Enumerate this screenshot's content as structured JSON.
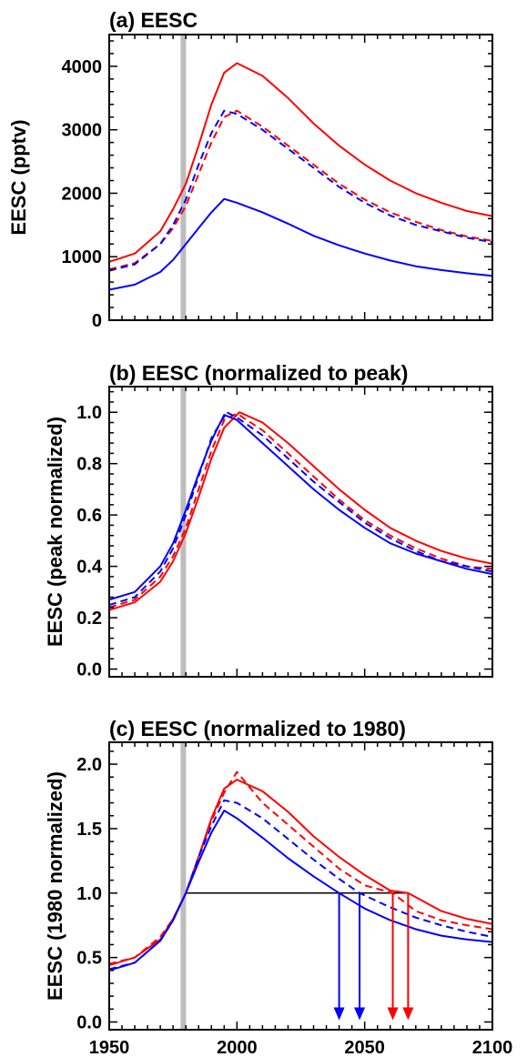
{
  "chart_data": [
    {
      "type": "line",
      "title": "(a) EESC",
      "ylabel": "EESC (pptv)",
      "xlim": [
        1950,
        2100
      ],
      "ylim": [
        0,
        4500
      ],
      "yticks": [
        "0",
        "1000",
        "2000",
        "3000",
        "4000"
      ],
      "ytick_values": [
        0,
        1000,
        2000,
        3000,
        4000
      ],
      "xticks": [
        1950,
        2000,
        2050,
        2100
      ],
      "show_x_tick_labels": false,
      "vertical_band_x": 1979,
      "series": [
        {
          "color": "#ff0000",
          "dash": false,
          "x": [
            1950,
            1960,
            1970,
            1975,
            1980,
            1985,
            1990,
            1995,
            2000,
            2010,
            2020,
            2030,
            2040,
            2050,
            2060,
            2070,
            2080,
            2090,
            2100
          ],
          "values": [
            920,
            1050,
            1400,
            1750,
            2150,
            2750,
            3400,
            3900,
            4050,
            3850,
            3500,
            3100,
            2750,
            2450,
            2200,
            2000,
            1850,
            1720,
            1640
          ]
        },
        {
          "color": "#ff0000",
          "dash": true,
          "x": [
            1950,
            1960,
            1970,
            1975,
            1980,
            1985,
            1990,
            1995,
            2000,
            2010,
            2020,
            2030,
            2040,
            2050,
            2060,
            2070,
            2080,
            2090,
            2100
          ],
          "values": [
            800,
            900,
            1200,
            1450,
            1800,
            2300,
            2800,
            3200,
            3300,
            3050,
            2750,
            2450,
            2150,
            1900,
            1700,
            1550,
            1420,
            1320,
            1250
          ]
        },
        {
          "color": "#0000ff",
          "dash": true,
          "x": [
            1950,
            1960,
            1970,
            1975,
            1980,
            1985,
            1990,
            1995,
            2000,
            2010,
            2020,
            2030,
            2040,
            2050,
            2060,
            2070,
            2080,
            2090,
            2100
          ],
          "values": [
            780,
            880,
            1200,
            1500,
            1900,
            2450,
            2950,
            3300,
            3250,
            3000,
            2700,
            2400,
            2100,
            1850,
            1650,
            1500,
            1400,
            1300,
            1230
          ]
        },
        {
          "color": "#0000ff",
          "dash": false,
          "x": [
            1950,
            1960,
            1970,
            1975,
            1980,
            1985,
            1990,
            1995,
            2000,
            2010,
            2020,
            2030,
            2040,
            2050,
            2060,
            2070,
            2080,
            2090,
            2100
          ],
          "values": [
            480,
            560,
            760,
            950,
            1200,
            1450,
            1700,
            1910,
            1850,
            1700,
            1520,
            1330,
            1180,
            1050,
            940,
            850,
            790,
            740,
            700
          ]
        }
      ]
    },
    {
      "type": "line",
      "title": "(b) EESC (normalized to peak)",
      "ylabel": "EESC (peak normalized)",
      "xlim": [
        1950,
        2100
      ],
      "ylim": [
        -0.03,
        1.1
      ],
      "yticks": [
        "0.0",
        "0.2",
        "0.4",
        "0.6",
        "0.8",
        "1.0"
      ],
      "ytick_values": [
        0,
        0.2,
        0.4,
        0.6,
        0.8,
        1.0
      ],
      "xticks": [
        1950,
        2000,
        2050,
        2100
      ],
      "show_x_tick_labels": false,
      "vertical_band_x": 1979,
      "series": [
        {
          "color": "#ff0000",
          "dash": false,
          "x": [
            1950,
            1960,
            1970,
            1975,
            1980,
            1985,
            1990,
            1995,
            2001,
            2010,
            2020,
            2030,
            2040,
            2050,
            2060,
            2070,
            2080,
            2090,
            2100
          ],
          "values": [
            0.23,
            0.26,
            0.34,
            0.42,
            0.53,
            0.67,
            0.82,
            0.94,
            1.0,
            0.96,
            0.88,
            0.79,
            0.7,
            0.62,
            0.55,
            0.5,
            0.46,
            0.43,
            0.41
          ]
        },
        {
          "color": "#ff0000",
          "dash": true,
          "x": [
            1950,
            1960,
            1970,
            1975,
            1980,
            1985,
            1990,
            1995,
            2000,
            2010,
            2020,
            2030,
            2040,
            2050,
            2060,
            2070,
            2080,
            2090,
            2100
          ],
          "values": [
            0.24,
            0.27,
            0.36,
            0.44,
            0.55,
            0.7,
            0.85,
            0.97,
            0.995,
            0.93,
            0.84,
            0.75,
            0.66,
            0.58,
            0.52,
            0.47,
            0.43,
            0.4,
            0.39
          ]
        },
        {
          "color": "#0000ff",
          "dash": true,
          "x": [
            1950,
            1960,
            1970,
            1975,
            1980,
            1985,
            1990,
            1996,
            2000,
            2010,
            2020,
            2030,
            2040,
            2050,
            2060,
            2070,
            2080,
            2090,
            2100
          ],
          "values": [
            0.25,
            0.28,
            0.38,
            0.47,
            0.6,
            0.75,
            0.9,
            1.0,
            0.98,
            0.91,
            0.82,
            0.73,
            0.65,
            0.57,
            0.51,
            0.46,
            0.42,
            0.4,
            0.38
          ]
        },
        {
          "color": "#0000ff",
          "dash": false,
          "x": [
            1950,
            1960,
            1970,
            1975,
            1980,
            1985,
            1990,
            1995,
            2000,
            2010,
            2020,
            2030,
            2040,
            2050,
            2060,
            2070,
            2080,
            2090,
            2100
          ],
          "values": [
            0.27,
            0.3,
            0.4,
            0.49,
            0.62,
            0.76,
            0.89,
            0.99,
            0.97,
            0.88,
            0.79,
            0.7,
            0.62,
            0.55,
            0.49,
            0.45,
            0.42,
            0.39,
            0.37
          ]
        }
      ]
    },
    {
      "type": "line",
      "title": "(c) EESC (normalized to 1980)",
      "ylabel": "EESC (1980 normalized)",
      "xlim": [
        1950,
        2100
      ],
      "ylim": [
        -0.06,
        2.17
      ],
      "yticks": [
        "0.0",
        "0.5",
        "1.0",
        "1.5",
        "2.0"
      ],
      "ytick_values": [
        0,
        0.5,
        1.0,
        1.5,
        2.0
      ],
      "xticks": [
        1950,
        2000,
        2050,
        2100
      ],
      "xtick_labels": [
        "1950",
        "2000",
        "2050",
        "2100"
      ],
      "show_x_tick_labels": true,
      "vertical_band_x": 1979,
      "reference_line": {
        "y": 1.0,
        "x_start": 1980,
        "x_end": 2067
      },
      "arrows": [
        {
          "x": 2040,
          "color": "#0000ff"
        },
        {
          "x": 2048,
          "color": "#0000ff"
        },
        {
          "x": 2061,
          "color": "#ff0000"
        },
        {
          "x": 2067,
          "color": "#ff0000"
        }
      ],
      "series": [
        {
          "color": "#ff0000",
          "dash": false,
          "x": [
            1950,
            1960,
            1970,
            1975,
            1980,
            1985,
            1990,
            1995,
            2000,
            2010,
            2020,
            2030,
            2040,
            2050,
            2060,
            2067,
            2080,
            2090,
            2100
          ],
          "values": [
            0.44,
            0.5,
            0.64,
            0.8,
            1.0,
            1.28,
            1.58,
            1.81,
            1.88,
            1.79,
            1.63,
            1.44,
            1.28,
            1.14,
            1.02,
            1.0,
            0.86,
            0.8,
            0.76
          ]
        },
        {
          "color": "#ff0000",
          "dash": true,
          "x": [
            1950,
            1960,
            1970,
            1975,
            1980,
            1985,
            1990,
            1995,
            2000,
            2010,
            2020,
            2030,
            2040,
            2050,
            2061,
            2070,
            2080,
            2090,
            2100
          ],
          "values": [
            0.45,
            0.5,
            0.66,
            0.8,
            1.0,
            1.28,
            1.56,
            1.78,
            1.94,
            1.7,
            1.53,
            1.36,
            1.19,
            1.06,
            1.0,
            0.86,
            0.79,
            0.75,
            0.72
          ]
        },
        {
          "color": "#0000ff",
          "dash": true,
          "x": [
            1950,
            1960,
            1970,
            1975,
            1980,
            1985,
            1990,
            1995,
            2000,
            2010,
            2020,
            2030,
            2040,
            2048,
            2060,
            2070,
            2080,
            2090,
            2100
          ],
          "values": [
            0.41,
            0.46,
            0.63,
            0.79,
            1.0,
            1.28,
            1.52,
            1.72,
            1.7,
            1.58,
            1.42,
            1.26,
            1.11,
            1.0,
            0.89,
            0.81,
            0.75,
            0.7,
            0.66
          ]
        },
        {
          "color": "#0000ff",
          "dash": false,
          "x": [
            1950,
            1960,
            1970,
            1975,
            1980,
            1985,
            1990,
            1995,
            2000,
            2010,
            2020,
            2030,
            2040,
            2050,
            2060,
            2070,
            2080,
            2090,
            2100
          ],
          "values": [
            0.4,
            0.46,
            0.63,
            0.79,
            1.0,
            1.24,
            1.47,
            1.64,
            1.58,
            1.43,
            1.27,
            1.13,
            1.0,
            0.88,
            0.79,
            0.72,
            0.67,
            0.64,
            0.62
          ]
        }
      ]
    }
  ]
}
